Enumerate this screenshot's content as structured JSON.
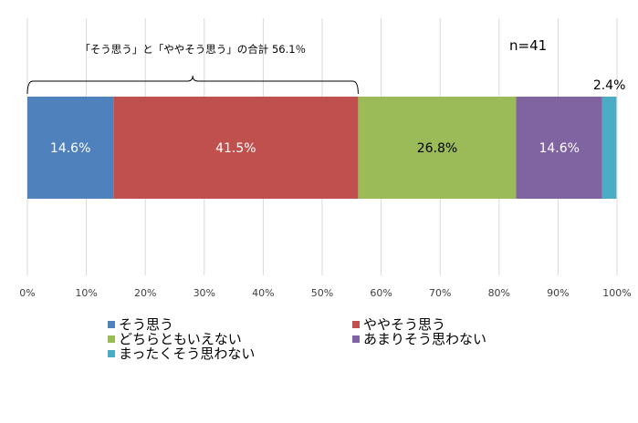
{
  "chart_data": {
    "type": "bar",
    "orientation": "horizontal-stacked-100",
    "annotation": "「そう思う」と「ややそう思う」の合計 56.1％",
    "n_label": "n=41",
    "xlim": [
      0,
      100
    ],
    "x_ticks": [
      "0%",
      "10%",
      "20%",
      "30%",
      "40%",
      "50%",
      "60%",
      "70%",
      "80%",
      "90%",
      "100%"
    ],
    "grid": "vertical",
    "legend_position": "bottom",
    "series": [
      {
        "name": "そう思う",
        "value": 14.6,
        "label": "14.6%",
        "color": "#4f81bd",
        "label_color": "#ffffff"
      },
      {
        "name": "ややそう思う",
        "value": 41.5,
        "label": "41.5%",
        "color": "#c0504d",
        "label_color": "#ffffff"
      },
      {
        "name": "どちらともいえない",
        "value": 26.8,
        "label": "26.8%",
        "color": "#9bbb59",
        "label_color": "#000000"
      },
      {
        "name": "あまりそう思わない",
        "value": 14.6,
        "label": "14.6%",
        "color": "#8064a2",
        "label_color": "#ffffff"
      },
      {
        "name": "まったくそう思わない",
        "value": 2.4,
        "label": "2.4%",
        "color": "#4bacc6",
        "label_color": "#000000"
      }
    ]
  }
}
